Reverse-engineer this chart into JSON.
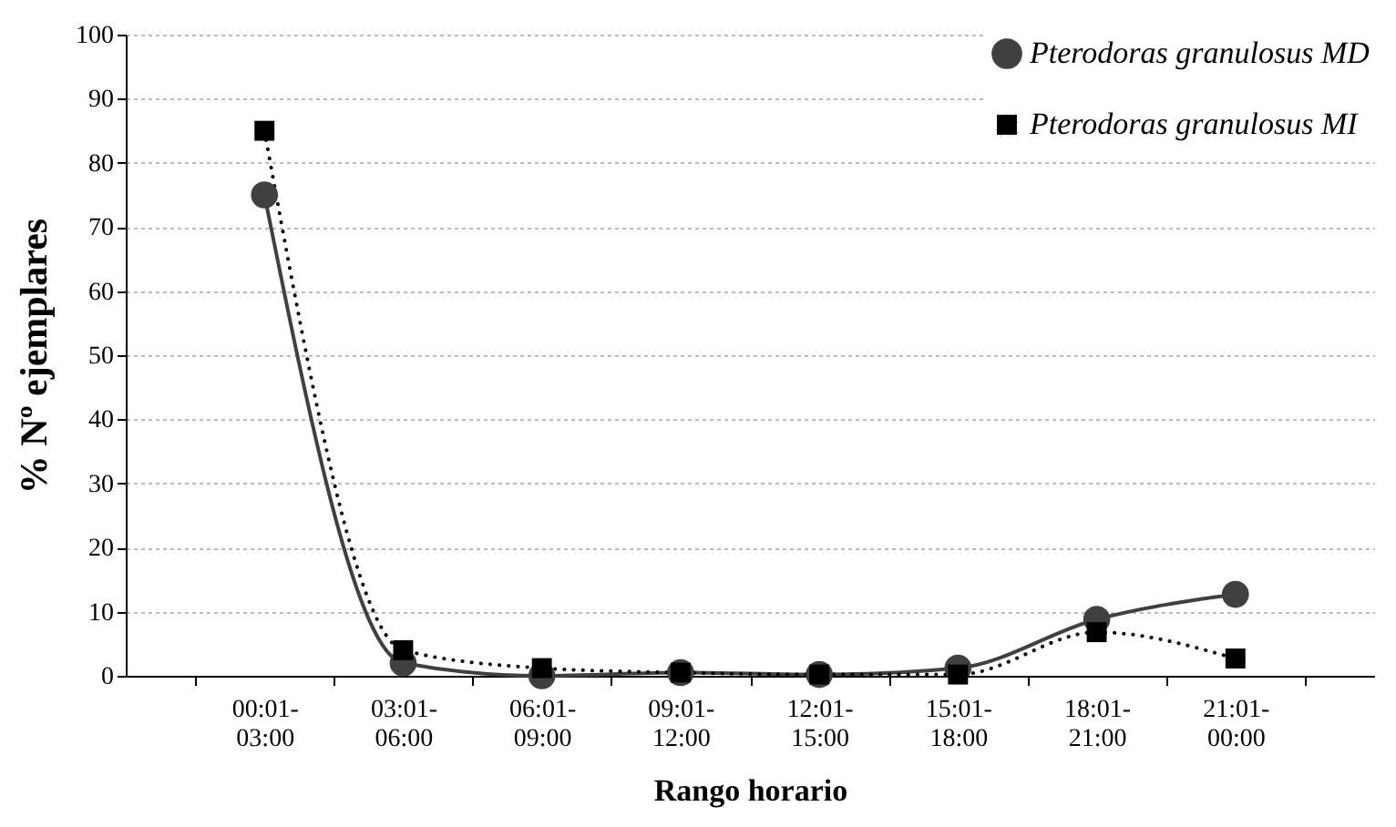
{
  "chart_data": {
    "type": "line",
    "xlabel": "Rango horario",
    "ylabel": "% Nº ejemplares",
    "categories": [
      "00:01-03:00",
      "03:01-06:00",
      "06:01-09:00",
      "09:01-12:00",
      "12:01-15:00",
      "15:01-18:00",
      "18:01-21:00",
      "21:01-00:00"
    ],
    "series": [
      {
        "name": "Pterodoras granulosus MD",
        "color": "#404040",
        "marker": "circle",
        "line_style": "solid",
        "values": [
          75,
          2,
          0,
          0.5,
          0.2,
          1.2,
          8.8,
          12.7
        ]
      },
      {
        "name": "Pterodoras granulosus MI",
        "color": "#000000",
        "marker": "square",
        "line_style": "dotted",
        "values": [
          85,
          4,
          1.2,
          0.5,
          0.2,
          0.2,
          6.8,
          2.7
        ]
      }
    ],
    "ylim": [
      0,
      100
    ],
    "yticks": [
      0,
      10,
      20,
      30,
      40,
      50,
      60,
      70,
      80,
      90,
      100
    ],
    "grid": "y",
    "legend": "top right"
  }
}
